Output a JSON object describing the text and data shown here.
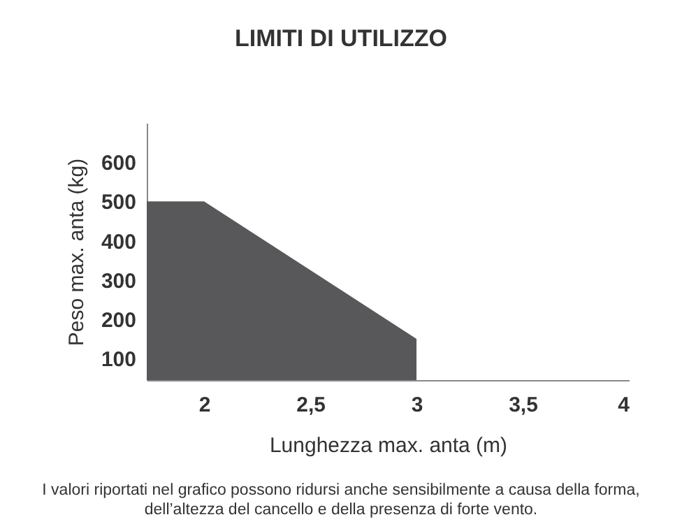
{
  "chart_data": {
    "type": "area",
    "title": "LIMITI DI UTILIZZO",
    "xlabel": "Lunghezza max. anta (m)",
    "ylabel": "Peso max. anta (kg)",
    "x": [
      1.73,
      2,
      3
    ],
    "values": [
      500,
      500,
      150
    ],
    "color": "#58585a",
    "xlim": [
      1.73,
      4
    ],
    "xticks": [
      2,
      {
        "value": 2.5,
        "label": "2,5"
      },
      3,
      {
        "value": 3.5,
        "label": "3,5"
      },
      4
    ],
    "ylim": [
      45,
      700
    ],
    "yticks": [
      100,
      200,
      300,
      400,
      500,
      600
    ],
    "grid": false,
    "annotations": [
      "I valori riportati nel grafico possono ridursi anche sensibilmente a causa della forma, dell’altezza del cancello e della presenza di forte vento."
    ]
  }
}
